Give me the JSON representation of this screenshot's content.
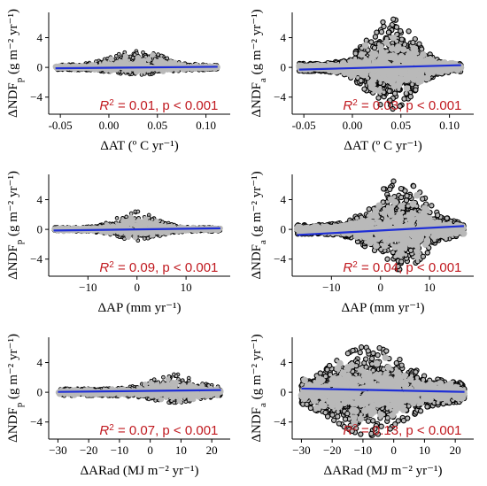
{
  "colors": {
    "point_fill": "#b9b9b9",
    "point_outline": "#000000",
    "fit_line": "#1f2fd6",
    "annotation": "#c0191f"
  },
  "chart_data": [
    {
      "type": "scatter",
      "panel": "top-left",
      "xlabel": "ΔAT (º C yr⁻¹)",
      "ylabel": "ΔNDFp (g m⁻² yr⁻¹)",
      "xlim": [
        -0.062,
        0.125
      ],
      "ylim": [
        -6.3,
        7.4
      ],
      "xticks": [
        -0.05,
        0.0,
        0.05,
        0.1
      ],
      "xtick_labels": [
        "-0.05",
        "0.00",
        "0.05",
        "0.10"
      ],
      "yticks": [
        -4,
        0,
        4
      ],
      "ytick_labels": [
        "−4",
        "0",
        "4"
      ],
      "cloud": {
        "x_min": -0.055,
        "x_max": 0.112,
        "center": 0.03,
        "spread": 0.035,
        "amp_up": 2.3,
        "amp_down": 1.0,
        "baseline": 0.35
      },
      "fit_line": {
        "x": [
          -0.055,
          0.112
        ],
        "y": [
          -0.12,
          0.08
        ]
      },
      "annotation": {
        "prefix": "R",
        "sup": "2",
        "text": " = 0.01, p < 0.001"
      }
    },
    {
      "type": "scatter",
      "panel": "top-right",
      "xlabel": "ΔAT (º C yr⁻¹)",
      "ylabel": "ΔNDFa (g m⁻² yr⁻¹)",
      "xlim": [
        -0.062,
        0.125
      ],
      "ylim": [
        -6.3,
        7.4
      ],
      "xticks": [
        -0.05,
        0.0,
        0.05,
        0.1
      ],
      "xtick_labels": [
        "-0.05",
        "0.00",
        "0.05",
        "0.10"
      ],
      "yticks": [
        -4,
        0,
        4
      ],
      "ytick_labels": [
        "−4",
        "0",
        "4"
      ],
      "cloud": {
        "x_min": -0.055,
        "x_max": 0.112,
        "center": 0.04,
        "spread": 0.032,
        "amp_up": 6.5,
        "amp_down": 5.6,
        "baseline": 0.5
      },
      "fit_line": {
        "x": [
          -0.055,
          0.112
        ],
        "y": [
          -0.3,
          0.3
        ]
      },
      "annotation": {
        "prefix": "R",
        "sup": "2",
        "text": " = 0.03, p < 0.001"
      }
    },
    {
      "type": "scatter",
      "panel": "middle-left",
      "xlabel": "ΔAP (mm yr⁻¹)",
      "ylabel": "ΔNDFp (g m⁻² yr⁻¹)",
      "xlim": [
        -18,
        19
      ],
      "ylim": [
        -6.3,
        7.4
      ],
      "xticks": [
        -10,
        0,
        10
      ],
      "xtick_labels": [
        "−10",
        "0",
        "10"
      ],
      "yticks": [
        -4,
        0,
        4
      ],
      "ytick_labels": [
        "−4",
        "0",
        "4"
      ],
      "cloud": {
        "x_min": -17,
        "x_max": 17,
        "center": 0,
        "spread": 5.5,
        "amp_up": 2.4,
        "amp_down": 1.5,
        "baseline": 0.3
      },
      "fit_line": {
        "x": [
          -17,
          17
        ],
        "y": [
          -0.15,
          0.15
        ]
      },
      "annotation": {
        "prefix": "R",
        "sup": "2",
        "text": " = 0.09, p < 0.001"
      }
    },
    {
      "type": "scatter",
      "panel": "middle-right",
      "xlabel": "ΔAP (mm yr⁻¹)",
      "ylabel": "ΔNDFa (g m⁻² yr⁻¹)",
      "xlim": [
        -18,
        19
      ],
      "ylim": [
        -6.3,
        7.4
      ],
      "xticks": [
        -10,
        0,
        10
      ],
      "xtick_labels": [
        "−10",
        "0",
        "10"
      ],
      "yticks": [
        -4,
        0,
        4
      ],
      "ytick_labels": [
        "−4",
        "0",
        "4"
      ],
      "cloud": {
        "x_min": -17,
        "x_max": 17,
        "center": 4,
        "spread": 7,
        "amp_up": 6.7,
        "amp_down": 5.4,
        "baseline": 0.6
      },
      "fit_line": {
        "x": [
          -17,
          17
        ],
        "y": [
          -0.75,
          0.45
        ]
      },
      "annotation": {
        "prefix": "R",
        "sup": "2",
        "text": " = 0.04, p < 0.001"
      }
    },
    {
      "type": "scatter",
      "panel": "bottom-left",
      "xlabel": "ΔARad (MJ m⁻² yr⁻¹)",
      "ylabel": "ΔNDFp (g m⁻² yr⁻¹)",
      "xlim": [
        -33,
        26
      ],
      "ylim": [
        -6.3,
        7.4
      ],
      "xticks": [
        -30,
        -20,
        -10,
        0,
        10,
        20
      ],
      "xtick_labels": [
        "−30",
        "−20",
        "−10",
        "0",
        "10",
        "20"
      ],
      "yticks": [
        -4,
        0,
        4
      ],
      "ytick_labels": [
        "−4",
        "0",
        "4"
      ],
      "cloud": {
        "x_min": -30,
        "x_max": 23,
        "center": 8,
        "spread": 10,
        "amp_up": 2.4,
        "amp_down": 1.4,
        "baseline": 0.5
      },
      "fit_line": {
        "x": [
          -30,
          23
        ],
        "y": [
          0.05,
          0.3
        ]
      },
      "annotation": {
        "prefix": "R",
        "sup": "2",
        "text": " = 0.07, p < 0.001"
      }
    },
    {
      "type": "scatter",
      "panel": "bottom-right",
      "xlabel": "ΔARad (MJ m⁻² yr⁻¹)",
      "ylabel": "ΔNDFa (g m⁻² yr⁻¹)",
      "xlim": [
        -33,
        26
      ],
      "ylim": [
        -6.3,
        7.4
      ],
      "xticks": [
        -30,
        -20,
        -10,
        0,
        10,
        20
      ],
      "xtick_labels": [
        "−30",
        "−20",
        "−10",
        "0",
        "10",
        "20"
      ],
      "yticks": [
        -4,
        0,
        4
      ],
      "ytick_labels": [
        "−4",
        "0",
        "4"
      ],
      "cloud": {
        "x_min": -30,
        "x_max": 23,
        "center": -8,
        "spread": 15,
        "amp_up": 6.2,
        "amp_down": 5.8,
        "baseline": 1.2
      },
      "fit_line": {
        "x": [
          -30,
          23
        ],
        "y": [
          0.5,
          0.05
        ]
      },
      "annotation": {
        "prefix": "R",
        "sup": "2",
        "text": " = 0.13, p < 0.001"
      }
    }
  ]
}
